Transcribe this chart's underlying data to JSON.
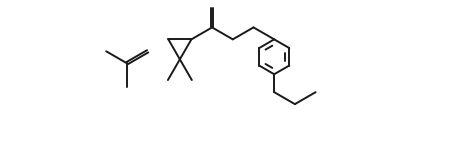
{
  "background_color": "#ffffff",
  "line_color": "#1a1a1a",
  "line_width": 1.4,
  "figsize": [
    4.64,
    1.42
  ],
  "dpi": 100,
  "xlim": [
    0,
    10.0
  ],
  "ylim": [
    -1.8,
    3.2
  ]
}
